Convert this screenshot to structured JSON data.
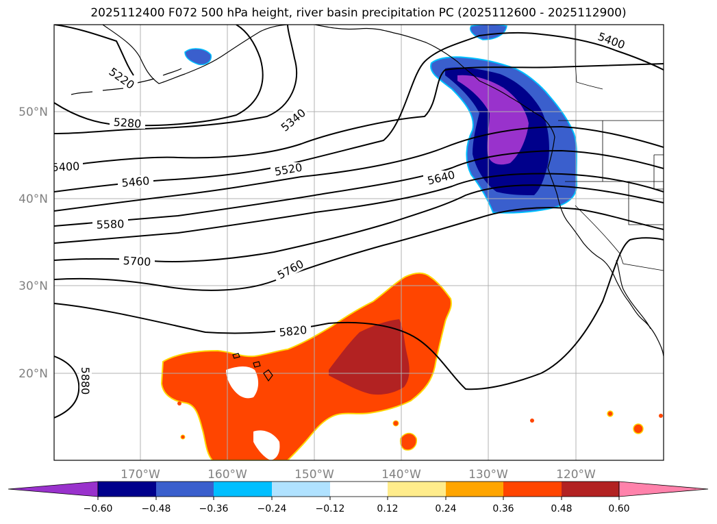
{
  "title": "2025112400 F072 500 hPa height, river basin precipitation PC (2025112600 - 2025112900)",
  "latitude_labels": [
    "50°N",
    "40°N",
    "30°N",
    "20°N"
  ],
  "longitude_labels": [
    "170°W",
    "160°W",
    "150°W",
    "140°W",
    "130°W",
    "120°W"
  ],
  "height_contour_labels": [
    "5220",
    "5280",
    "5340",
    "5400",
    "5400",
    "5460",
    "5520",
    "5580",
    "5640",
    "5700",
    "5760",
    "5820",
    "5880"
  ],
  "colorbar": {
    "ticks": [
      "−0.60",
      "−0.48",
      "−0.36",
      "−0.24",
      "−0.12",
      "0.12",
      "0.24",
      "0.36",
      "0.48",
      "0.60"
    ],
    "colors": [
      "#9932cc",
      "#00008b",
      "#3a5fcd",
      "#00bfff",
      "#b0e2ff",
      "#ffffff",
      "#ffec8b",
      "#ffa500",
      "#ff4500",
      "#b22222",
      "#ff82ab"
    ]
  },
  "colors": {
    "contour": "#000000",
    "coastline": "#000000",
    "gridline": "#b0b0b0"
  }
}
